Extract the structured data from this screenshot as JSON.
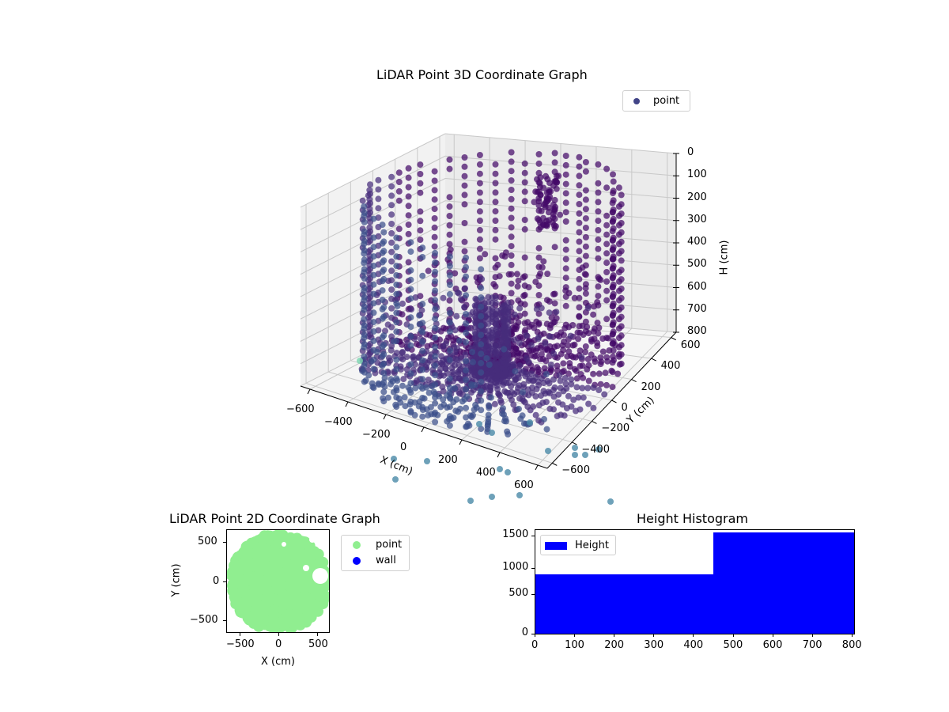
{
  "chart_data": [
    {
      "type": "scatter3d",
      "title": "LiDAR Point 3D Coordinate Graph",
      "xlabel": "X (cm)",
      "ylabel": "Y (cm)",
      "zlabel": "H (cm)",
      "x_ticks": [
        "−600",
        "−400",
        "−200",
        "0",
        "200",
        "400",
        "600"
      ],
      "y_ticks": [
        "−600",
        "−400",
        "−200",
        "0",
        "200",
        "400",
        "600"
      ],
      "z_ticks": [
        "0",
        "100",
        "200",
        "300",
        "400",
        "500",
        "600",
        "700",
        "800"
      ],
      "xlim": [
        -650,
        650
      ],
      "ylim": [
        -650,
        650
      ],
      "zlim": [
        800,
        0
      ],
      "zaxis_inverted": true,
      "grid": true,
      "legend": [
        {
          "label": "point",
          "color": "#414487"
        }
      ],
      "legend_position": "upper right",
      "colormap": "viridis",
      "description": "Cylindrical wall of LiDAR points (radius ~600cm) with vertical columns from H=0 to H=800, plus radial floor points around center; colored dark purple to teal by depth"
    },
    {
      "type": "scatter",
      "title": "LiDAR Point 2D Coordinate Graph",
      "xlabel": "X (cm)",
      "ylabel": "Y (cm)",
      "x_ticks": [
        "−500",
        "0",
        "500"
      ],
      "y_ticks": [
        "−500",
        "0",
        "500"
      ],
      "xlim": [
        -680,
        680
      ],
      "ylim": [
        -680,
        680
      ],
      "series": [
        {
          "name": "point",
          "color": "#90ee90",
          "description": "dense disk of points filling radius ~650cm"
        },
        {
          "name": "wall",
          "color": "#0000ff",
          "description": "no visible points"
        }
      ],
      "legend_position": "outside right"
    },
    {
      "type": "bar",
      "title": "Height Histogram",
      "xlabel": "",
      "ylabel": "",
      "x_ticks": [
        "0",
        "100",
        "200",
        "300",
        "400",
        "500",
        "600",
        "700",
        "800"
      ],
      "y_ticks": [
        "0",
        "500",
        "1000",
        "1500"
      ],
      "xlim": [
        0,
        805
      ],
      "ylim": [
        0,
        1610
      ],
      "bins": [
        {
          "from": 0,
          "to": 448,
          "count": 910
        },
        {
          "from": 448,
          "to": 805,
          "count": 1540
        }
      ],
      "series": [
        {
          "name": "Height",
          "color": "#0000ff"
        }
      ],
      "legend_position": "upper left"
    }
  ],
  "plot3d": {
    "title": "LiDAR Point 3D Coordinate Graph",
    "legend_label": "point",
    "xlabel": "X (cm)",
    "ylabel": "Y (cm)",
    "zlabel": "H (cm)",
    "x_ticks": [
      "−600",
      "−400",
      "−200",
      "0",
      "200",
      "400",
      "600"
    ],
    "y_ticks": [
      "−600",
      "−400",
      "−200",
      "0",
      "200",
      "400",
      "600"
    ],
    "z_ticks": [
      "0",
      "100",
      "200",
      "300",
      "400",
      "500",
      "600",
      "700",
      "800"
    ]
  },
  "plot2d": {
    "title": "LiDAR Point 2D Coordinate Graph",
    "xlabel": "X (cm)",
    "ylabel": "Y (cm)",
    "x_ticks": [
      "−500",
      "0",
      "500"
    ],
    "y_ticks": [
      "−500",
      "0",
      "500"
    ],
    "legend": [
      {
        "label": "point",
        "color": "#90ee90"
      },
      {
        "label": "wall",
        "color": "#0000ff"
      }
    ]
  },
  "hist": {
    "title": "Height Histogram",
    "legend_label": "Height",
    "bar_color": "#0000ff",
    "x_ticks": [
      "0",
      "100",
      "200",
      "300",
      "400",
      "500",
      "600",
      "700",
      "800"
    ],
    "y_ticks": [
      "0",
      "500",
      "1000",
      "1500"
    ]
  }
}
